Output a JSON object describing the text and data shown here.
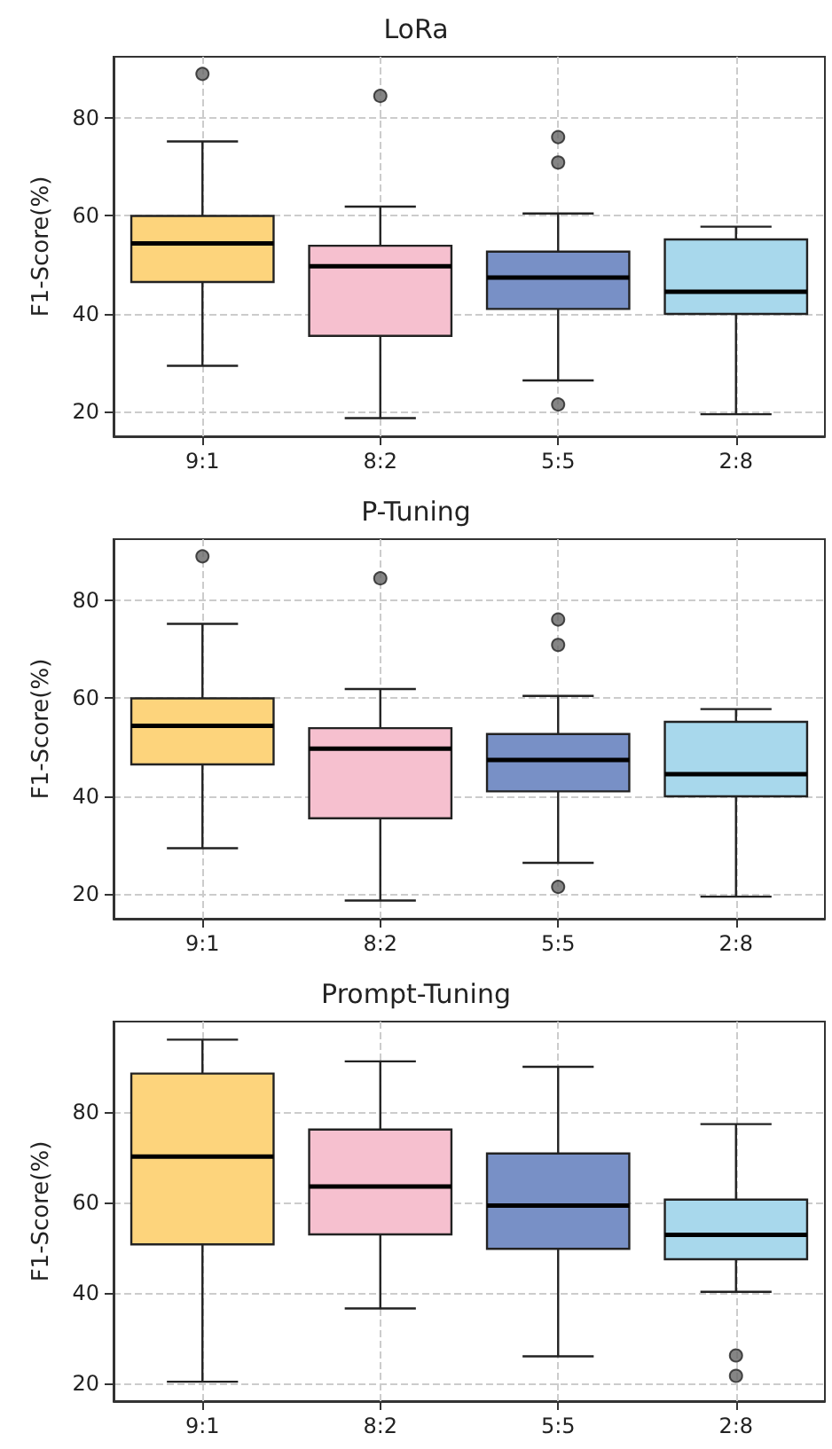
{
  "chart_data": [
    {
      "type": "box",
      "title": "LoRa",
      "ylabel": "F1-Score(%)",
      "categories": [
        "9:1",
        "8:2",
        "5:5",
        "2:8"
      ],
      "colors": [
        "#fdd47c",
        "#f6c0cf",
        "#7890c6",
        "#a8d8ec"
      ],
      "ylim": [
        15,
        92.5
      ],
      "yticks": [
        20,
        40,
        60,
        80
      ],
      "grid": true,
      "boxes": [
        {
          "low": 29.4,
          "q1": 46.5,
          "median": 54.4,
          "q3": 60,
          "high": 75.2,
          "outliers": [
            89
          ]
        },
        {
          "low": 18.7,
          "q1": 35.5,
          "median": 49.7,
          "q3": 53.9,
          "high": 61.9,
          "outliers": [
            84.5
          ]
        },
        {
          "low": 26.4,
          "q1": 41,
          "median": 47.4,
          "q3": 52.7,
          "high": 60.5,
          "outliers": [
            76.1,
            70.9,
            21.5
          ]
        },
        {
          "low": 19.5,
          "q1": 40,
          "median": 44.5,
          "q3": 55.2,
          "high": 57.8
        }
      ]
    },
    {
      "type": "box",
      "title": "P-Tuning",
      "ylabel": "F1-Score(%)",
      "categories": [
        "9:1",
        "8:2",
        "5:5",
        "2:8"
      ],
      "colors": [
        "#fdd47c",
        "#f6c0cf",
        "#7890c6",
        "#a8d8ec"
      ],
      "ylim": [
        15,
        92.5
      ],
      "yticks": [
        20,
        40,
        60,
        80
      ],
      "grid": true,
      "boxes": [
        {
          "low": 29.4,
          "q1": 46.5,
          "median": 54.4,
          "q3": 60,
          "high": 75.2,
          "outliers": [
            89
          ]
        },
        {
          "low": 18.7,
          "q1": 35.5,
          "median": 49.7,
          "q3": 53.9,
          "high": 61.9,
          "outliers": [
            84.5
          ]
        },
        {
          "low": 26.4,
          "q1": 41,
          "median": 47.4,
          "q3": 52.7,
          "high": 60.5,
          "outliers": [
            76.1,
            70.9,
            21.5
          ]
        },
        {
          "low": 19.5,
          "q1": 40,
          "median": 44.5,
          "q3": 55.2,
          "high": 57.8
        }
      ]
    },
    {
      "type": "box",
      "title": "Prompt-Tuning",
      "ylabel": "F1-Score(%)",
      "categories": [
        "9:1",
        "8:2",
        "5:5",
        "2:8"
      ],
      "colors": [
        "#fdd47c",
        "#f6c0cf",
        "#7890c6",
        "#a8d8ec"
      ],
      "ylim": [
        16,
        100
      ],
      "yticks": [
        20,
        40,
        60,
        80
      ],
      "grid": true,
      "boxes": [
        {
          "low": 20.3,
          "q1": 50.7,
          "median": 70.1,
          "q3": 88.5,
          "high": 96
        },
        {
          "low": 36.5,
          "q1": 52.9,
          "median": 63.5,
          "q3": 76.1,
          "high": 91.2
        },
        {
          "low": 25.9,
          "q1": 49.7,
          "median": 59.3,
          "q3": 70.8,
          "high": 90
        },
        {
          "low": 40.2,
          "q1": 47.4,
          "median": 52.8,
          "q3": 60.6,
          "high": 77.3,
          "outliers": [
            26.1,
            21.6
          ]
        }
      ]
    }
  ]
}
